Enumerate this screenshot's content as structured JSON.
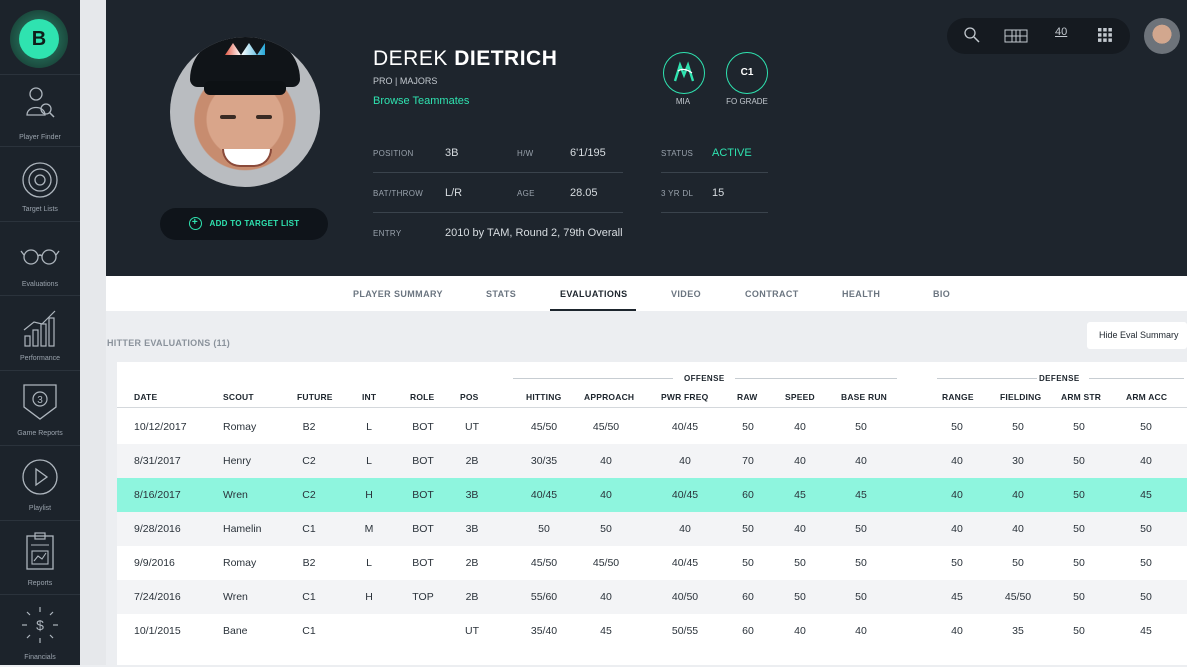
{
  "app": {
    "logo_letter": "B"
  },
  "sidebar": {
    "items": [
      {
        "label": "Player Finder",
        "icon": "player-finder-icon"
      },
      {
        "label": "Target Lists",
        "icon": "target-icon"
      },
      {
        "label": "Evaluations",
        "icon": "glasses-icon"
      },
      {
        "label": "Performance",
        "icon": "bar-chart-icon"
      },
      {
        "label": "Game Reports",
        "icon": "shield-icon"
      },
      {
        "label": "Playlist",
        "icon": "play-icon"
      },
      {
        "label": "Reports",
        "icon": "clipboard-chart-icon"
      },
      {
        "label": "Financials",
        "icon": "dollar-icon"
      }
    ]
  },
  "topbar": {
    "roster_number": "40"
  },
  "player": {
    "first_name": "DEREK",
    "last_name": "DIETRICH",
    "level": "PRO | MAJORS",
    "browse_link": "Browse Teammates",
    "add_target_label": "ADD TO TARGET LIST",
    "team": {
      "code": "MIA",
      "color": "#2fe3b0"
    },
    "fo_grade": {
      "value": "C1",
      "label": "FO GRADE"
    },
    "info": {
      "position_label": "POSITION",
      "position": "3B",
      "hw_label": "H/W",
      "hw": "6'1/195",
      "status_label": "STATUS",
      "status": "ACTIVE",
      "bat_label": "BAT/THROW",
      "bat": "L/R",
      "age_label": "AGE",
      "age": "28.05",
      "dl_label": "3 YR DL",
      "dl": "15",
      "entry_label": "ENTRY",
      "entry": "2010 by TAM, Round 2, 79th Overall"
    }
  },
  "tabs": [
    "PLAYER SUMMARY",
    "STATS",
    "EVALUATIONS",
    "VIDEO",
    "CONTRACT",
    "HEALTH",
    "BIO"
  ],
  "evaluations": {
    "title": "HITTER EVALUATIONS (11)",
    "hide_button": "Hide Eval Summary",
    "groups": {
      "offense": "OFFENSE",
      "defense": "DEFENSE"
    },
    "columns": [
      "DATE",
      "SCOUT",
      "FUTURE",
      "INT",
      "ROLE",
      "POS",
      "HITTING",
      "APPROACH",
      "PWR FREQ",
      "RAW",
      "SPEED",
      "BASE RUN",
      "RANGE",
      "FIELDING",
      "ARM STR",
      "ARM ACC"
    ],
    "rows": [
      [
        "10/12/2017",
        "Romay",
        "B2",
        "L",
        "BOT",
        "UT",
        "45/50",
        "45/50",
        "40/45",
        "50",
        "40",
        "50",
        "50",
        "50",
        "50",
        "50"
      ],
      [
        "8/31/2017",
        "Henry",
        "C2",
        "L",
        "BOT",
        "2B",
        "30/35",
        "40",
        "40",
        "70",
        "40",
        "40",
        "40",
        "30",
        "50",
        "40"
      ],
      [
        "8/16/2017",
        "Wren",
        "C2",
        "H",
        "BOT",
        "3B",
        "40/45",
        "40",
        "40/45",
        "60",
        "45",
        "45",
        "40",
        "40",
        "50",
        "45"
      ],
      [
        "9/28/2016",
        "Hamelin",
        "C1",
        "M",
        "BOT",
        "3B",
        "50",
        "50",
        "40",
        "50",
        "40",
        "50",
        "40",
        "40",
        "50",
        "50"
      ],
      [
        "9/9/2016",
        "Romay",
        "B2",
        "L",
        "BOT",
        "2B",
        "45/50",
        "45/50",
        "40/45",
        "50",
        "50",
        "50",
        "50",
        "50",
        "50",
        "50"
      ],
      [
        "7/24/2016",
        "Wren",
        "C1",
        "H",
        "TOP",
        "2B",
        "55/60",
        "40",
        "40/50",
        "60",
        "50",
        "50",
        "45",
        "45/50",
        "50",
        "50"
      ],
      [
        "10/1/2015",
        "Bane",
        "C1",
        "",
        "",
        "UT",
        "35/40",
        "45",
        "50/55",
        "60",
        "40",
        "40",
        "40",
        "35",
        "50",
        "45"
      ]
    ],
    "highlight_color": "#8ef5de"
  }
}
